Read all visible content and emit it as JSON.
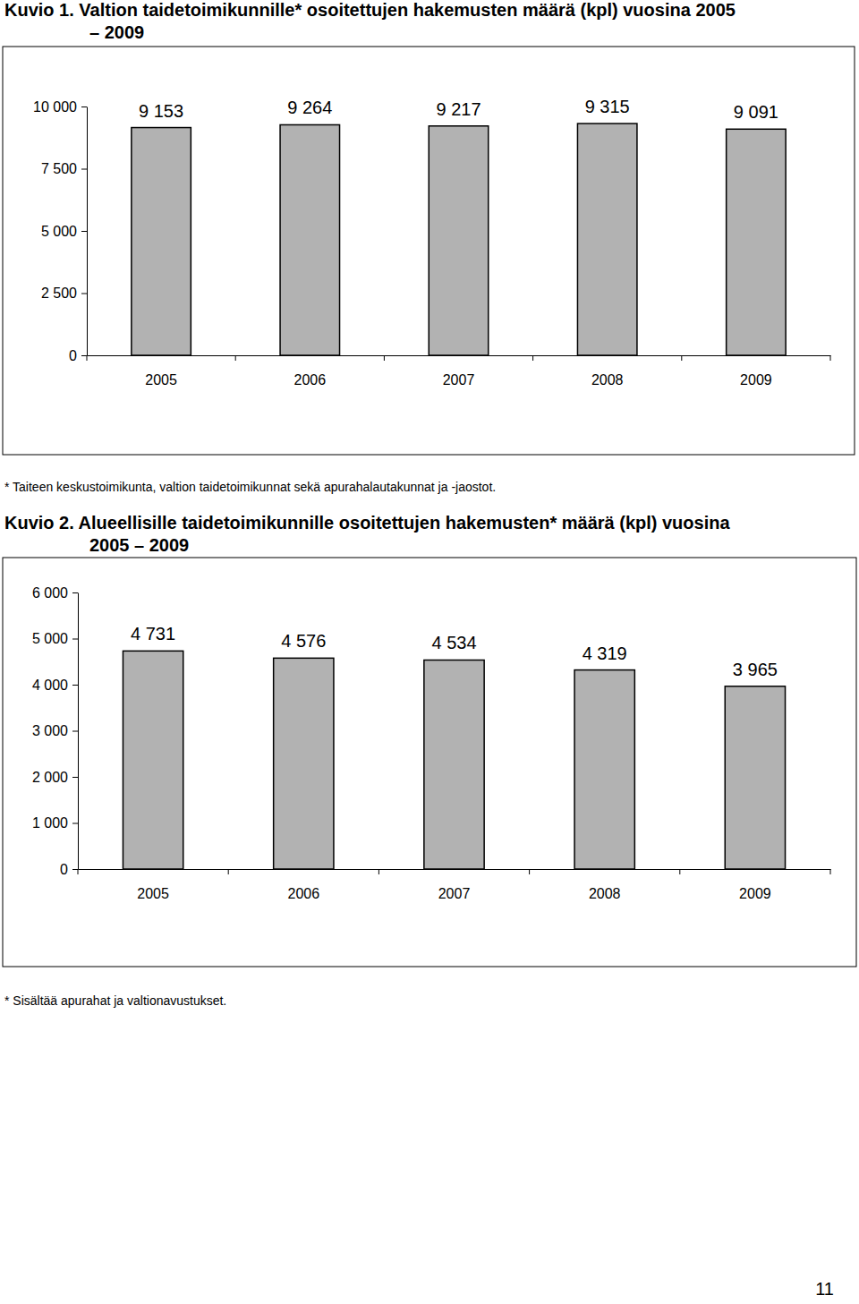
{
  "chart_data": [
    {
      "type": "bar",
      "title": "Kuvio 1. Valtion taidetoimikunnille* osoitettujen hakemusten määrä (kpl) vuosina 2005 – 2009",
      "categories": [
        "2005",
        "2006",
        "2007",
        "2008",
        "2009"
      ],
      "values": [
        9153,
        9264,
        9217,
        9315,
        9091
      ],
      "value_labels": [
        "9 153",
        "9 264",
        "9 217",
        "9 315",
        "9 091"
      ],
      "color": "#b2b2b2",
      "ylim": [
        0,
        10000
      ],
      "yticks": [
        0,
        {
          "value": 2500,
          "label": "2 500"
        },
        {
          "value": 5000,
          "label": "5 000"
        },
        {
          "value": 7500,
          "label": "7 500"
        },
        {
          "value": 10000,
          "label": "10 000"
        }
      ],
      "grid": false,
      "data_labels": true,
      "annotations": [
        "* Taiteen keskustoimikunta, valtion taidetoimikunnat sekä apurahalautakunnat ja -jaostot."
      ]
    },
    {
      "type": "bar",
      "title": "Kuvio 2. Alueellisille taidetoimikunnille osoitettujen hakemusten* määrä (kpl) vuosina 2005 – 2009",
      "categories": [
        "2005",
        "2006",
        "2007",
        "2008",
        "2009"
      ],
      "values": [
        4731,
        4576,
        4534,
        4319,
        3965
      ],
      "value_labels": [
        "4 731",
        "4 576",
        "4 534",
        "4 319",
        "3 965"
      ],
      "color": "#b2b2b2",
      "ylim": [
        0,
        6000
      ],
      "yticks": [
        0,
        {
          "value": 1000,
          "label": "1 000"
        },
        {
          "value": 2000,
          "label": "2 000"
        },
        {
          "value": 3000,
          "label": "3 000"
        },
        {
          "value": 4000,
          "label": "4 000"
        },
        {
          "value": 5000,
          "label": "5 000"
        },
        {
          "value": 6000,
          "label": "6 000"
        }
      ],
      "grid": false,
      "data_labels": true,
      "annotations": [
        "* Sisältää apurahat ja valtionavustukset."
      ]
    }
  ],
  "page_number": 11
}
